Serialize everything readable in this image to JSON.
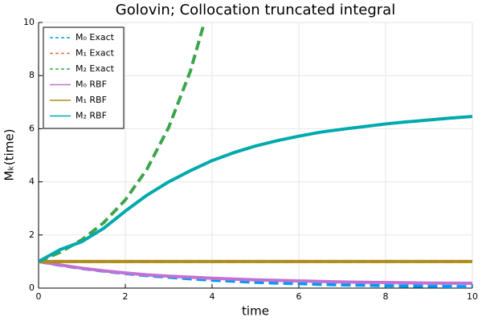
{
  "chart_data": {
    "type": "line",
    "title": "Golovin; Collocation truncated integral",
    "xlabel": "time",
    "ylabel": "Mₖ(time)",
    "x": [
      0,
      0.5,
      1,
      1.5,
      2,
      2.5,
      3,
      3.5,
      4,
      4.5,
      5,
      5.5,
      6,
      6.5,
      7,
      7.5,
      8,
      8.5,
      9,
      9.5,
      10
    ],
    "xlim": [
      0,
      10
    ],
    "xticks": [
      0,
      2,
      4,
      6,
      8,
      10
    ],
    "ylim": [
      0,
      10
    ],
    "yticks": [
      0,
      2,
      4,
      6,
      8,
      10
    ],
    "grid": true,
    "legend": "upper left",
    "series": [
      {
        "name": "M₀ Exact",
        "color": "#009af9",
        "dashed": true,
        "values": [
          1,
          0.86,
          0.74,
          0.64,
          0.55,
          0.47,
          0.41,
          0.35,
          0.3,
          0.26,
          0.22,
          0.19,
          0.17,
          0.14,
          0.12,
          0.11,
          0.09,
          0.08,
          0.07,
          0.06,
          0.05
        ]
      },
      {
        "name": "M₁ Exact",
        "color": "#e26f46",
        "dashed": true,
        "values": [
          1,
          1,
          1,
          1,
          1,
          1,
          1,
          1,
          1,
          1,
          1,
          1,
          1,
          1,
          1,
          1,
          1,
          1,
          1,
          1,
          1
        ]
      },
      {
        "name": "M₂ Exact",
        "color": "#3da44d",
        "dashed": true,
        "values": [
          1,
          1.35,
          1.82,
          2.46,
          3.32,
          4.48,
          6.05,
          8.17,
          11.02,
          null,
          null,
          null,
          null,
          null,
          null,
          null,
          null,
          null,
          null,
          null,
          null
        ]
      },
      {
        "name": "M₀ RBF",
        "color": "#c271d2",
        "dashed": false,
        "values": [
          1,
          0.87,
          0.75,
          0.65,
          0.57,
          0.5,
          0.45,
          0.41,
          0.37,
          0.34,
          0.31,
          0.29,
          0.27,
          0.25,
          0.23,
          0.22,
          0.21,
          0.2,
          0.19,
          0.185,
          0.18
        ]
      },
      {
        "name": "M₁ RBF",
        "color": "#ac8e18",
        "dashed": false,
        "values": [
          1,
          1,
          1,
          1,
          1,
          1,
          1,
          1,
          1,
          1,
          1,
          1,
          1,
          1,
          1,
          1,
          1,
          1,
          1,
          1,
          1
        ]
      },
      {
        "name": "M₂ RBF",
        "color": "#00a9ad",
        "dashed": false,
        "values": [
          1,
          1.45,
          1.75,
          2.25,
          2.9,
          3.5,
          4.0,
          4.42,
          4.8,
          5.1,
          5.35,
          5.55,
          5.72,
          5.87,
          5.98,
          6.08,
          6.18,
          6.26,
          6.33,
          6.4,
          6.46
        ]
      }
    ]
  }
}
